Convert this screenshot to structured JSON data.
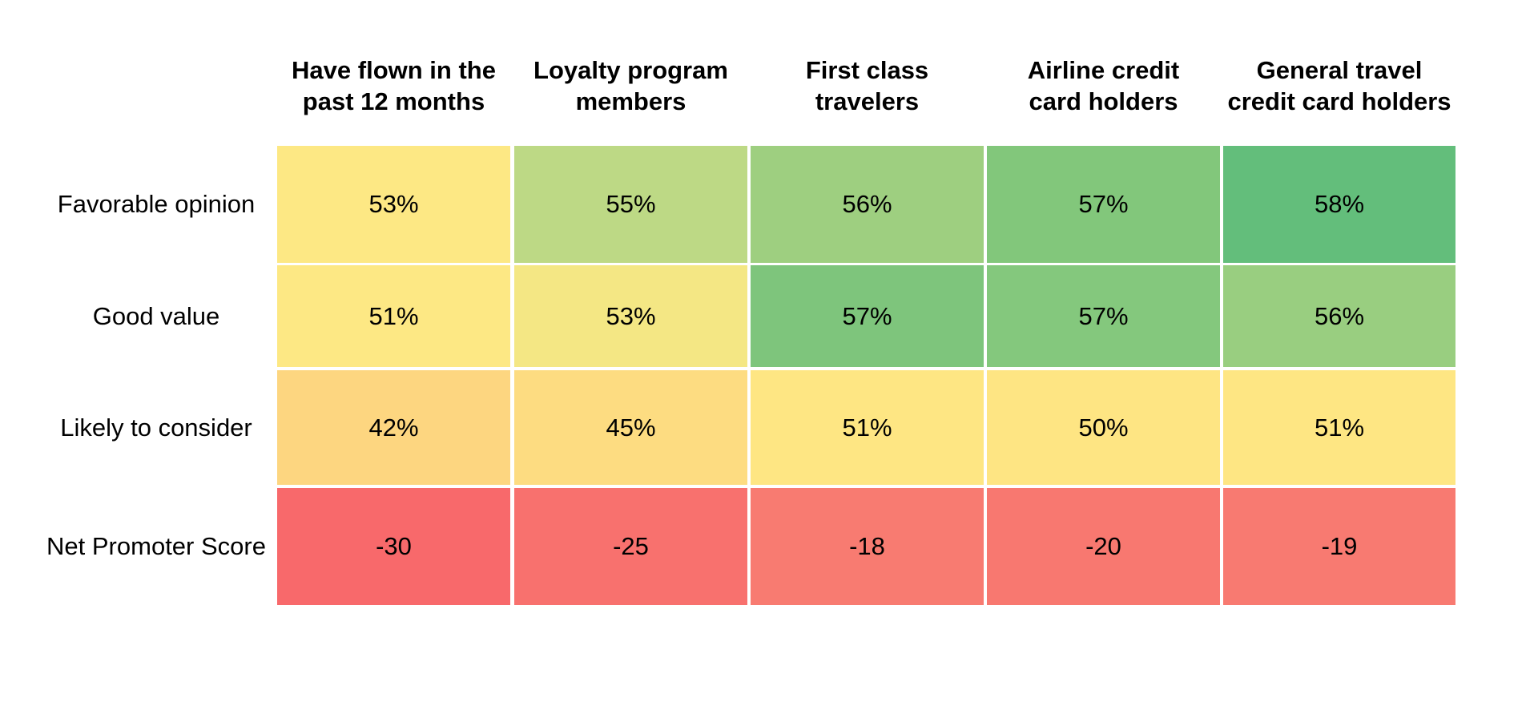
{
  "chart_data": {
    "type": "heatmap",
    "columns": [
      "Have flown in the\npast 12 months",
      "Loyalty program\nmembers",
      "First class\ntravelers",
      "Airline credit\ncard holders",
      "General travel\ncredit card holders"
    ],
    "rows": [
      {
        "label": "Favorable opinion",
        "cells": [
          {
            "text": "53%",
            "value": 53,
            "color": "#fde884"
          },
          {
            "text": "55%",
            "value": 55,
            "color": "#bdd985"
          },
          {
            "text": "56%",
            "value": 56,
            "color": "#9ecf80"
          },
          {
            "text": "57%",
            "value": 57,
            "color": "#82c77b"
          },
          {
            "text": "58%",
            "value": 58,
            "color": "#63be7b"
          }
        ]
      },
      {
        "label": "Good value",
        "cells": [
          {
            "text": "51%",
            "value": 51,
            "color": "#fde884"
          },
          {
            "text": "53%",
            "value": 53,
            "color": "#f4e784"
          },
          {
            "text": "57%",
            "value": 57,
            "color": "#7ec57c"
          },
          {
            "text": "57%",
            "value": 57,
            "color": "#84c87d"
          },
          {
            "text": "56%",
            "value": 56,
            "color": "#99ce80"
          }
        ]
      },
      {
        "label": "Likely to consider",
        "cells": [
          {
            "text": "42%",
            "value": 42,
            "color": "#fdd680"
          },
          {
            "text": "45%",
            "value": 45,
            "color": "#fddc81"
          },
          {
            "text": "51%",
            "value": 51,
            "color": "#fee683"
          },
          {
            "text": "50%",
            "value": 50,
            "color": "#fee583"
          },
          {
            "text": "51%",
            "value": 51,
            "color": "#fee683"
          }
        ]
      },
      {
        "label": "Net Promoter Score",
        "cells": [
          {
            "text": "-30",
            "value": -30,
            "color": "#f8696b"
          },
          {
            "text": "-25",
            "value": -25,
            "color": "#f8716e"
          },
          {
            "text": "-18",
            "value": -18,
            "color": "#f87b71"
          },
          {
            "text": "-20",
            "value": -20,
            "color": "#f87870"
          },
          {
            "text": "-19",
            "value": -19,
            "color": "#f87a71"
          }
        ]
      }
    ]
  }
}
